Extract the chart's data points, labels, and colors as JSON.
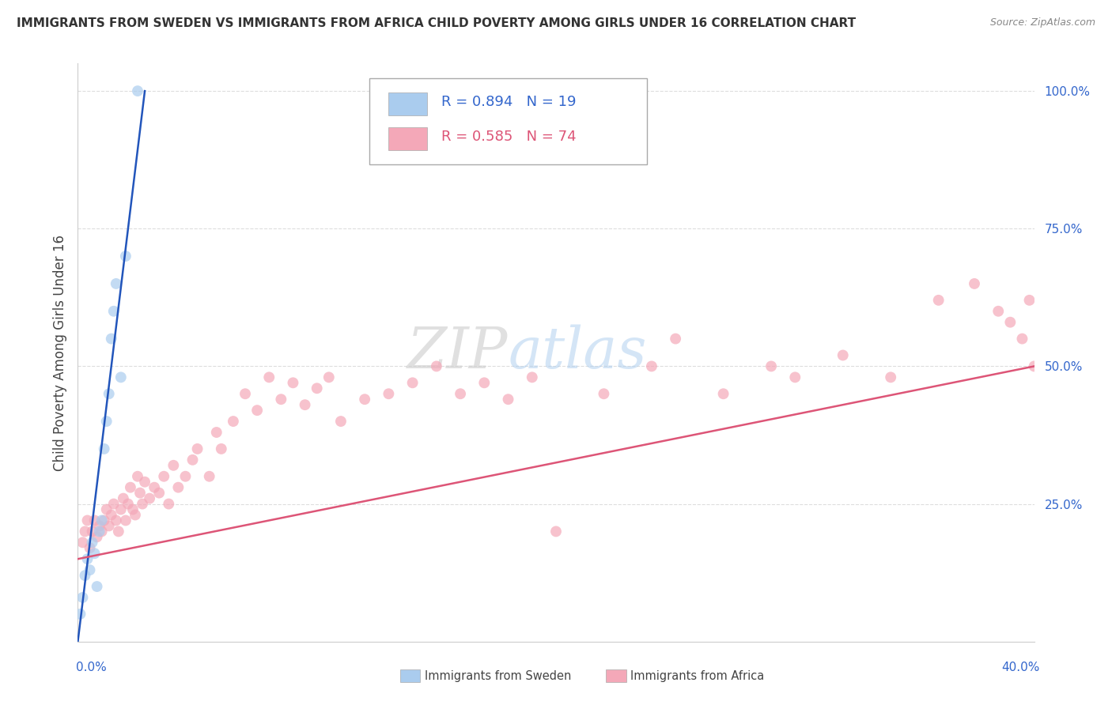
{
  "title": "IMMIGRANTS FROM SWEDEN VS IMMIGRANTS FROM AFRICA CHILD POVERTY AMONG GIRLS UNDER 16 CORRELATION CHART",
  "source": "Source: ZipAtlas.com",
  "ylabel": "Child Poverty Among Girls Under 16",
  "xlim": [
    0.0,
    40.0
  ],
  "ylim": [
    0.0,
    105.0
  ],
  "background_color": "#ffffff",
  "grid_color": "#dddddd",
  "sweden_color": "#aaccee",
  "africa_color": "#f4a8b8",
  "sweden_line_color": "#2255bb",
  "africa_line_color": "#dd5577",
  "legend_R_sweden": "R = 0.894",
  "legend_N_sweden": "N = 19",
  "legend_R_africa": "R = 0.585",
  "legend_N_africa": "N = 74",
  "sweden_scatter_x": [
    0.1,
    0.2,
    0.3,
    0.4,
    0.5,
    0.6,
    0.7,
    0.8,
    0.9,
    1.0,
    1.1,
    1.2,
    1.3,
    1.4,
    1.5,
    1.6,
    1.8,
    2.0,
    2.5
  ],
  "sweden_scatter_y": [
    5.0,
    8.0,
    12.0,
    15.0,
    13.0,
    18.0,
    16.0,
    10.0,
    20.0,
    22.0,
    35.0,
    40.0,
    45.0,
    55.0,
    60.0,
    65.0,
    48.0,
    70.0,
    100.0
  ],
  "africa_scatter_x": [
    0.2,
    0.3,
    0.4,
    0.5,
    0.6,
    0.7,
    0.8,
    0.9,
    1.0,
    1.1,
    1.2,
    1.3,
    1.4,
    1.5,
    1.6,
    1.7,
    1.8,
    1.9,
    2.0,
    2.1,
    2.2,
    2.3,
    2.4,
    2.5,
    2.6,
    2.7,
    2.8,
    3.0,
    3.2,
    3.4,
    3.6,
    3.8,
    4.0,
    4.2,
    4.5,
    4.8,
    5.0,
    5.5,
    5.8,
    6.0,
    6.5,
    7.0,
    7.5,
    8.0,
    8.5,
    9.0,
    9.5,
    10.0,
    10.5,
    11.0,
    12.0,
    13.0,
    14.0,
    15.0,
    16.0,
    17.0,
    18.0,
    19.0,
    20.0,
    22.0,
    24.0,
    25.0,
    27.0,
    29.0,
    30.0,
    32.0,
    34.0,
    36.0,
    37.5,
    38.5,
    39.0,
    39.5,
    39.8,
    40.0
  ],
  "africa_scatter_y": [
    18.0,
    20.0,
    22.0,
    17.0,
    20.0,
    22.0,
    19.0,
    21.0,
    20.0,
    22.0,
    24.0,
    21.0,
    23.0,
    25.0,
    22.0,
    20.0,
    24.0,
    26.0,
    22.0,
    25.0,
    28.0,
    24.0,
    23.0,
    30.0,
    27.0,
    25.0,
    29.0,
    26.0,
    28.0,
    27.0,
    30.0,
    25.0,
    32.0,
    28.0,
    30.0,
    33.0,
    35.0,
    30.0,
    38.0,
    35.0,
    40.0,
    45.0,
    42.0,
    48.0,
    44.0,
    47.0,
    43.0,
    46.0,
    48.0,
    40.0,
    44.0,
    45.0,
    47.0,
    50.0,
    45.0,
    47.0,
    44.0,
    48.0,
    20.0,
    45.0,
    50.0,
    55.0,
    45.0,
    50.0,
    48.0,
    52.0,
    48.0,
    62.0,
    65.0,
    60.0,
    58.0,
    55.0,
    62.0,
    50.0
  ],
  "sweden_trend_x": [
    0.0,
    2.8
  ],
  "sweden_trend_y": [
    0.0,
    100.0
  ],
  "africa_trend_x": [
    0.0,
    40.0
  ],
  "africa_trend_y": [
    15.0,
    50.0
  ],
  "watermark_zip": "ZIP",
  "watermark_atlas": "atlas",
  "watermark_color_zip": "#cccccc",
  "watermark_color_atlas": "#aaccee"
}
